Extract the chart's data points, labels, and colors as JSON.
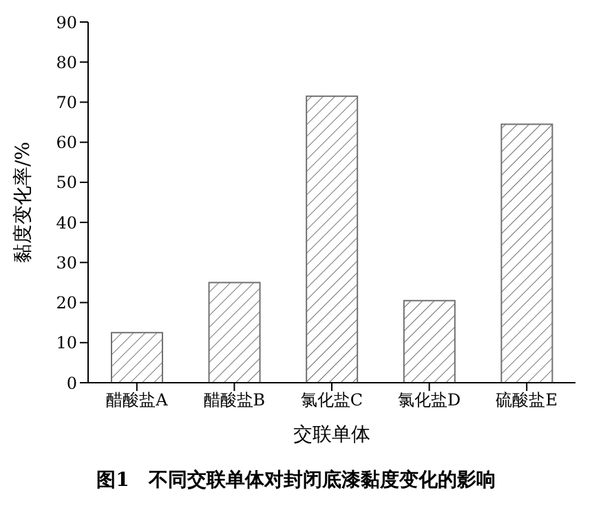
{
  "chart_data": {
    "type": "bar",
    "title": "图1　不同交联单体对封闭底漆黏度变化的影响",
    "xlabel": "交联单体",
    "ylabel": "黏度变化率/%",
    "categories": [
      "醋酸盐A",
      "醋酸盐B",
      "氯化盐C",
      "氯化盐D",
      "硫酸盐E"
    ],
    "values": [
      12.5,
      25,
      71.5,
      20.5,
      64.5
    ],
    "color": "#707070",
    "ylim": [
      0,
      90
    ],
    "yticks": [
      0,
      10,
      20,
      30,
      40,
      50,
      60,
      70,
      80,
      90
    ],
    "grid": false,
    "legend": false
  }
}
